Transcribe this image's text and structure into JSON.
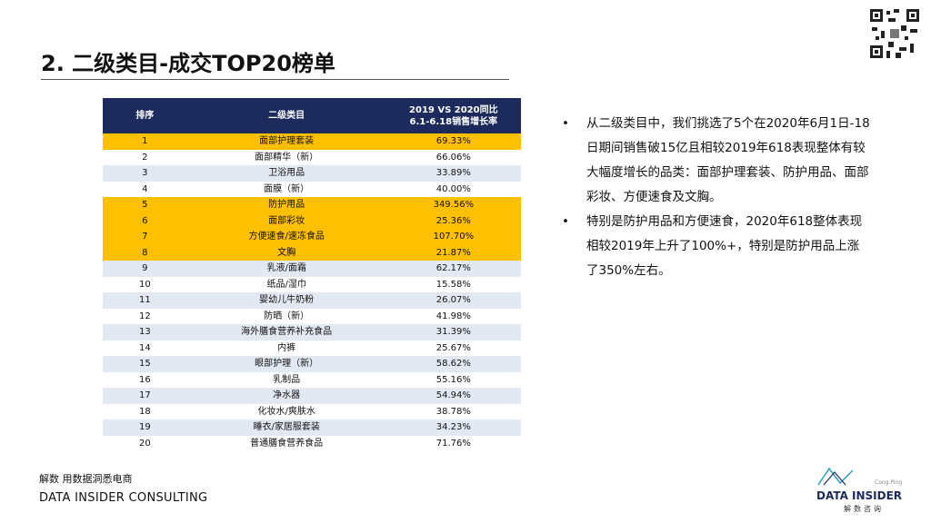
{
  "header": {
    "title": "2. 二级类目-成交TOP20榜单"
  },
  "table": {
    "columns": [
      "排序",
      "二级类目",
      "2019 VS 2020同比\n6.1-6.18销售增长率"
    ],
    "rows": [
      [
        1,
        "面部护理套装",
        "69.33%"
      ],
      [
        2,
        "面部精华（新）",
        "66.06%"
      ],
      [
        3,
        "卫浴用品",
        "33.89%"
      ],
      [
        4,
        "面膜（新）",
        "40.00%"
      ],
      [
        5,
        "防护用品",
        "349.56%"
      ],
      [
        6,
        "面部彩妆",
        "25.36%"
      ],
      [
        7,
        "方便速食/速冻食品",
        "107.70%"
      ],
      [
        8,
        "文胸",
        "21.87%"
      ],
      [
        9,
        "乳液/面霜",
        "62.17%"
      ],
      [
        10,
        "纸品/湿巾",
        "15.58%"
      ],
      [
        11,
        "婴幼儿牛奶粉",
        "26.07%"
      ],
      [
        12,
        "防晒（新）",
        "41.98%"
      ],
      [
        13,
        "海外膳食营养补充食品",
        "31.39%"
      ],
      [
        14,
        "内裤",
        "25.67%"
      ],
      [
        15,
        "眼部护理（新）",
        "58.62%"
      ],
      [
        16,
        "乳制品",
        "55.16%"
      ],
      [
        17,
        "净水器",
        "54.94%"
      ],
      [
        18,
        "化妆水/爽肤水",
        "38.78%"
      ],
      [
        19,
        "睡衣/家居服套装",
        "34.23%"
      ],
      [
        20,
        "普通膳食营养食品",
        "71.76%"
      ]
    ],
    "highlight": [
      0,
      4,
      5,
      6,
      7
    ]
  },
  "bullets": [
    "从二级类目中，我们挑选了5个在2020年6月1日-18日期间销售破15亿且相较2019年618表现整体有较大幅度增长的品类：面部护理套装、防护用品、面部彩妆、方便速食及文胸。",
    "特别是防护用品和方便速食，2020年618整体表现相较2019年上升了100%+，特别是防护用品上涨了350%左右。"
  ],
  "footer": {
    "tagline": "解数 用数据洞悉电商",
    "company": "DATA INSIDER CONSULTING"
  },
  "logo": {
    "small": "Cong.Ping",
    "name": "DATA INSIDER",
    "sub": "解数咨询"
  }
}
